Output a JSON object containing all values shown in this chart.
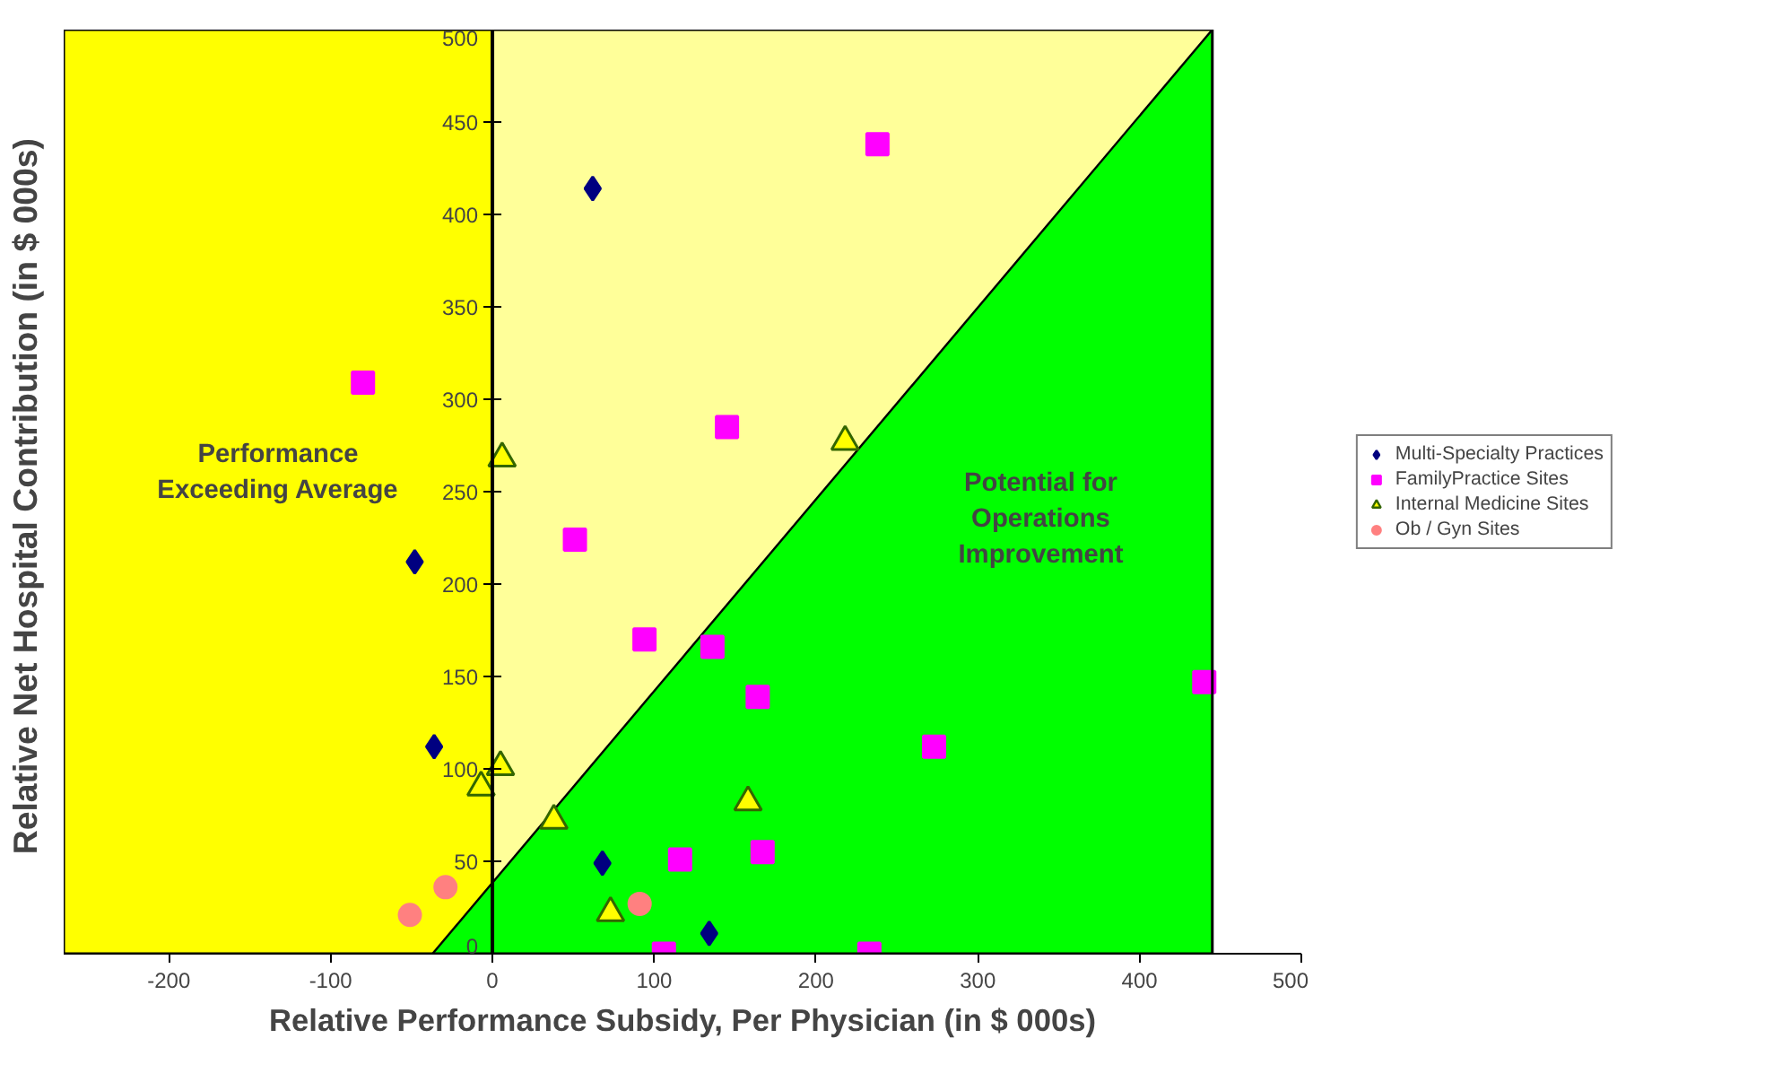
{
  "chart_data": {
    "type": "scatter",
    "xlabel": "Relative Performance Subsidy, Per Physician (in $ 000s)",
    "ylabel": "Relative Net Hospital Contribution  (in $ 000s)",
    "xlim": [
      -265,
      500
    ],
    "ylim": [
      0,
      500
    ],
    "xticks": [
      -200,
      -100,
      0,
      100,
      200,
      300,
      400,
      500
    ],
    "yticks": [
      0,
      50,
      100,
      150,
      200,
      250,
      300,
      350,
      400,
      450,
      500
    ],
    "grid": false,
    "legend": "right",
    "bands": [
      {
        "axis": "x",
        "from": -265,
        "to": 0,
        "color": "#ffff00"
      },
      {
        "axis": "x",
        "from": 0,
        "to": 445,
        "color": "#ffff99"
      }
    ],
    "annotations": [
      "Performance Exceeding Average",
      "Potential for Operations Improvement"
    ],
    "series": [
      {
        "type": "area",
        "color": "#00ff00",
        "x": [
          -37,
          445
        ],
        "values": [
          0,
          500
        ]
      },
      {
        "name": "Multi-Specialty Practices",
        "color": "#000080",
        "marker": "diamond",
        "x": [
          62,
          -48,
          -36,
          68,
          134
        ],
        "values": [
          414,
          212,
          112,
          49,
          11
        ]
      },
      {
        "name": "FamilyPractice Sites",
        "color": "#ff00ff",
        "marker": "square",
        "x": [
          -80,
          238,
          145,
          51,
          94,
          136,
          164,
          273,
          440,
          116,
          167,
          106,
          233
        ],
        "values": [
          309,
          438,
          285,
          224,
          170,
          166,
          139,
          112,
          147,
          51,
          55,
          0,
          0
        ]
      },
      {
        "name": "Internal Medicine Sites",
        "color": "#ffff00",
        "marker": "triangle",
        "x": [
          6,
          218,
          5,
          -7,
          38,
          158,
          73
        ],
        "values": [
          268,
          277,
          101,
          90,
          72,
          82,
          22
        ]
      },
      {
        "name": "Ob / Gyn Sites",
        "color": "#ff8080",
        "marker": "circle",
        "x": [
          -51,
          -29,
          91
        ],
        "values": [
          21,
          36,
          27
        ]
      }
    ]
  }
}
